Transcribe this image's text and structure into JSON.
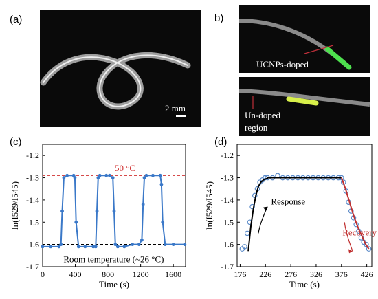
{
  "panels": {
    "a": {
      "label": "(a)",
      "scale_bar": "2 mm"
    },
    "b": {
      "label": "b)",
      "doped_label": "UCNPs-doped",
      "undoped_label_1": "Un-doped",
      "undoped_label_2": "region"
    },
    "c": {
      "label": "(c)"
    },
    "d": {
      "label": "(d)"
    }
  },
  "chart_data": [
    {
      "type": "line",
      "panel": "c",
      "xlabel": "Time (s)",
      "ylabel": "ln(I529/I545)",
      "x_ticks": [
        "0",
        "400",
        "800",
        "1200",
        "1600"
      ],
      "y_ticks": [
        "-1.2",
        "-1.3",
        "-1.4",
        "-1.5",
        "-1.6",
        "-1.7"
      ],
      "xlim": [
        0,
        1750
      ],
      "ylim": [
        -1.7,
        -1.15
      ],
      "annotations": {
        "hot": "50 °C",
        "cold": "Room temperature (~26 °C)"
      },
      "reference_lines": [
        -1.29,
        -1.6
      ],
      "series": [
        {
          "x": [
            0,
            100,
            200,
            225,
            240,
            260,
            300,
            380,
            395,
            410,
            440,
            520,
            620,
            650,
            665,
            680,
            700,
            780,
            820,
            860,
            875,
            890,
            920,
            1000,
            1100,
            1180,
            1215,
            1230,
            1245,
            1270,
            1350,
            1440,
            1455,
            1470,
            1500,
            1600,
            1740
          ],
          "y": [
            -1.61,
            -1.61,
            -1.61,
            -1.6,
            -1.45,
            -1.3,
            -1.29,
            -1.29,
            -1.3,
            -1.5,
            -1.61,
            -1.61,
            -1.61,
            -1.61,
            -1.45,
            -1.3,
            -1.29,
            -1.29,
            -1.29,
            -1.3,
            -1.45,
            -1.6,
            -1.61,
            -1.61,
            -1.6,
            -1.6,
            -1.58,
            -1.42,
            -1.3,
            -1.29,
            -1.29,
            -1.29,
            -1.33,
            -1.5,
            -1.6,
            -1.6,
            -1.6
          ]
        }
      ]
    },
    {
      "type": "line",
      "panel": "d",
      "xlabel": "Time (s)",
      "ylabel": "ln(I529/I545)",
      "x_ticks": [
        "176",
        "226",
        "276",
        "326",
        "376",
        "426"
      ],
      "y_ticks": [
        "-1.2",
        "-1.3",
        "-1.4",
        "-1.5",
        "-1.6",
        "-1.7"
      ],
      "xlim": [
        170,
        436
      ],
      "ylim": [
        -1.7,
        -1.15
      ],
      "annotations": {
        "response": "Response",
        "recovery": "Recovery"
      },
      "series": [
        {
          "name": "data",
          "x": [
            180,
            185,
            190,
            195,
            200,
            205,
            210,
            215,
            220,
            225,
            230,
            240,
            250,
            260,
            270,
            280,
            290,
            300,
            310,
            320,
            330,
            340,
            350,
            360,
            370,
            376,
            380,
            385,
            390,
            395,
            400,
            405,
            410,
            415,
            420,
            425,
            430
          ],
          "y": [
            -1.62,
            -1.61,
            -1.55,
            -1.5,
            -1.43,
            -1.38,
            -1.35,
            -1.32,
            -1.31,
            -1.3,
            -1.3,
            -1.3,
            -1.29,
            -1.3,
            -1.3,
            -1.3,
            -1.3,
            -1.3,
            -1.3,
            -1.3,
            -1.3,
            -1.3,
            -1.3,
            -1.3,
            -1.3,
            -1.3,
            -1.32,
            -1.36,
            -1.41,
            -1.45,
            -1.48,
            -1.51,
            -1.54,
            -1.57,
            -1.59,
            -1.6,
            -1.62
          ]
        },
        {
          "name": "fit",
          "x": [
            192,
            197,
            202,
            207,
            212,
            217,
            222,
            232,
            250,
            280,
            320,
            360,
            376
          ],
          "y": [
            -1.63,
            -1.52,
            -1.44,
            -1.38,
            -1.34,
            -1.32,
            -1.31,
            -1.3,
            -1.3,
            -1.3,
            -1.3,
            -1.3,
            -1.3
          ]
        },
        {
          "name": "fit-recovery",
          "x": [
            376,
            384,
            392,
            400,
            408,
            416,
            424,
            430
          ],
          "y": [
            -1.3,
            -1.35,
            -1.41,
            -1.47,
            -1.52,
            -1.56,
            -1.6,
            -1.62
          ]
        }
      ]
    }
  ]
}
